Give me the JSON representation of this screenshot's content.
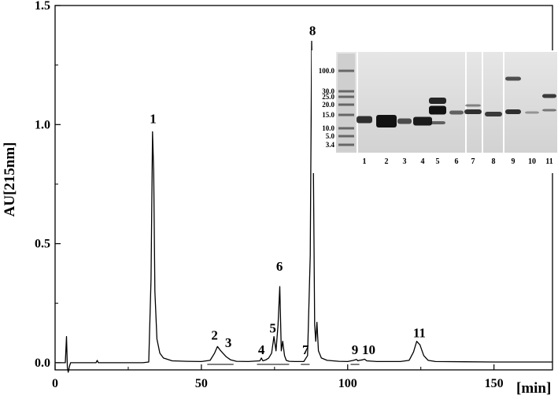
{
  "chart_data": {
    "type": "line",
    "title": "",
    "xlabel": "[min]",
    "ylabel": "AU[215nm]",
    "xlim": [
      0,
      170
    ],
    "ylim": [
      -0.03,
      1.5
    ],
    "x_ticks": [
      0,
      50,
      100,
      150
    ],
    "x_tick_labels": [
      "0",
      "50",
      "100",
      "150"
    ],
    "y_ticks": [
      0.0,
      0.5,
      1.0,
      1.5
    ],
    "y_tick_labels": [
      "0.0",
      "0.5",
      "1.0",
      "1.5"
    ],
    "grid": false,
    "series": [
      {
        "x": [
          0,
          3.5,
          3.9,
          4.2,
          4.5,
          4.9,
          5.3,
          8,
          14,
          14.4,
          14.8,
          20,
          30,
          32,
          32.8,
          33.3,
          33.7,
          34.1,
          34.8,
          35.8,
          37,
          40,
          45,
          50,
          53,
          54.5,
          55.5,
          56.5,
          57.5,
          58.5,
          60,
          62,
          66,
          70,
          70.5,
          71,
          72,
          73,
          74,
          74.8,
          75.5,
          76.2,
          76.8,
          77.3,
          77.8,
          78.4,
          79,
          80,
          82,
          85,
          86.3,
          87.2,
          87.7,
          88.2,
          88.7,
          89.1,
          89.5,
          90,
          91,
          93,
          97,
          100,
          102,
          103,
          103.5,
          104,
          105,
          105.8,
          106.5,
          110,
          118,
          121,
          122.5,
          123.6,
          124.7,
          126,
          127.5,
          130,
          140,
          150,
          160,
          165,
          170
        ],
        "y": [
          0,
          0,
          0.11,
          -0.02,
          -0.04,
          -0.015,
          0.0,
          0.0,
          0.0,
          0.01,
          0.0,
          0.0,
          0.0,
          0.003,
          0.35,
          0.97,
          0.8,
          0.3,
          0.1,
          0.04,
          0.02,
          0.008,
          0.006,
          0.005,
          0.01,
          0.04,
          0.068,
          0.052,
          0.038,
          0.025,
          0.012,
          0.006,
          0.005,
          0.008,
          0.02,
          0.008,
          0.012,
          0.02,
          0.04,
          0.11,
          0.05,
          0.16,
          0.32,
          0.05,
          0.09,
          0.03,
          0.01,
          0.006,
          0.005,
          0.005,
          0.03,
          0.45,
          1.35,
          0.95,
          0.16,
          0.09,
          0.17,
          0.05,
          0.02,
          0.01,
          0.006,
          0.005,
          0.01,
          0.014,
          0.008,
          0.01,
          0.012,
          0.015,
          0.008,
          0.005,
          0.005,
          0.01,
          0.045,
          0.09,
          0.075,
          0.03,
          0.01,
          0.005,
          0.004,
          0.003,
          0.003,
          0.003,
          0.003
        ]
      }
    ],
    "peak_labels": [
      {
        "label": "1",
        "x": 33.5,
        "y": 1.0
      },
      {
        "label": "2",
        "x": 54.5,
        "y": 0.09
      },
      {
        "label": "3",
        "x": 59.2,
        "y": 0.06
      },
      {
        "label": "4",
        "x": 70.5,
        "y": 0.03
      },
      {
        "label": "5",
        "x": 74.4,
        "y": 0.12
      },
      {
        "label": "6",
        "x": 76.7,
        "y": 0.38
      },
      {
        "label": "7",
        "x": 85.6,
        "y": 0.03
      },
      {
        "label": "8",
        "x": 88.0,
        "y": 1.37
      },
      {
        "label": "9",
        "x": 102.5,
        "y": 0.03
      },
      {
        "label": "10",
        "x": 107.2,
        "y": 0.03
      },
      {
        "label": "11",
        "x": 124.5,
        "y": 0.1
      }
    ],
    "fraction_bars": [
      {
        "x0": 52,
        "x1": 61
      },
      {
        "x0": 69,
        "x1": 80
      },
      {
        "x0": 84,
        "x1": 87
      },
      {
        "x0": 101,
        "x1": 104
      }
    ],
    "inset_gel": {
      "marker_labels": [
        "100.0",
        "30.0",
        "25.0",
        "20.0",
        "15.0",
        "10.0",
        "5.0",
        "3.4"
      ],
      "lane_labels": [
        "1",
        "2",
        "3",
        "4",
        "5",
        "6",
        "7",
        "8",
        "9",
        "10",
        "11"
      ]
    }
  }
}
